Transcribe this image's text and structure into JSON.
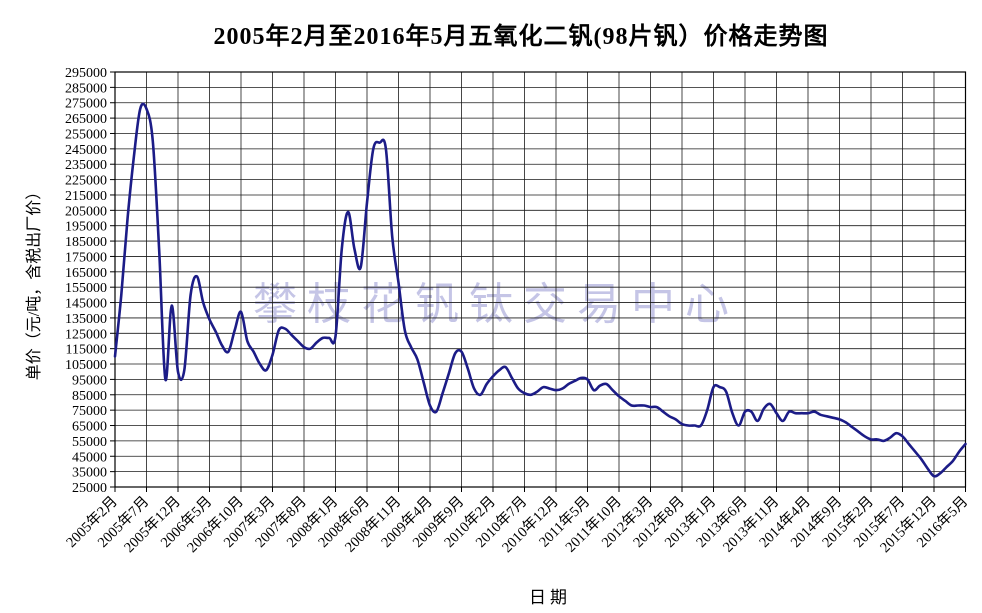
{
  "chart_data": {
    "type": "line",
    "title": "2005年2月至2016年5月五氧化二钒(98片钒）价格走势图",
    "xlabel": "日期",
    "ylabel": "单价（元/吨，含税出厂价）",
    "watermark": "攀枝花钒钛交易中心",
    "grid": "both",
    "legend": "none",
    "line_color": "#1c1c87",
    "ylim": [
      25000,
      295000
    ],
    "ytick_step": 10000,
    "ytick_labels": [
      "295000",
      "285000",
      "275000",
      "265000",
      "255000",
      "245000",
      "235000",
      "225000",
      "215000",
      "205000",
      "195000",
      "185000",
      "175000",
      "165000",
      "155000",
      "145000",
      "135000",
      "125000",
      "115000",
      "105000",
      "95000",
      "85000",
      "75000",
      "65000",
      "55000",
      "45000",
      "35000",
      "25000"
    ],
    "xtick_labels": [
      "2005年2月",
      "2005年7月",
      "2005年12月",
      "2006年5月",
      "2006年10月",
      "2007年3月",
      "2007年8月",
      "2008年1月",
      "2008年6月",
      "2008年11月",
      "2009年4月",
      "2009年9月",
      "2010年2月",
      "2010年7月",
      "2010年12月",
      "2011年5月",
      "2011年10月",
      "2012年3月",
      "2012年8月",
      "2013年1月",
      "2013年6月",
      "2013年11月",
      "2014年4月",
      "2014年9月",
      "2015年2月",
      "2015年7月",
      "2015年12月",
      "2016年5月"
    ],
    "xtick_every_n_points": 5,
    "series": [
      {
        "x": [
          "2005-02",
          "2005-03",
          "2005-04",
          "2005-05",
          "2005-06",
          "2005-07",
          "2005-08",
          "2005-09",
          "2005-10",
          "2005-11",
          "2005-12",
          "2006-01",
          "2006-02",
          "2006-03",
          "2006-04",
          "2006-05",
          "2006-06",
          "2006-07",
          "2006-08",
          "2006-09",
          "2006-10",
          "2006-11",
          "2006-12",
          "2007-01",
          "2007-02",
          "2007-03",
          "2007-04",
          "2007-05",
          "2007-06",
          "2007-07",
          "2007-08",
          "2007-09",
          "2007-10",
          "2007-11",
          "2007-12",
          "2008-01",
          "2008-02",
          "2008-03",
          "2008-04",
          "2008-05",
          "2008-06",
          "2008-07",
          "2008-08",
          "2008-09",
          "2008-10",
          "2008-11",
          "2008-12",
          "2009-01",
          "2009-02",
          "2009-03",
          "2009-04",
          "2009-05",
          "2009-06",
          "2009-07",
          "2009-08",
          "2009-09",
          "2009-10",
          "2009-11",
          "2009-12",
          "2010-01",
          "2010-02",
          "2010-03",
          "2010-04",
          "2010-05",
          "2010-06",
          "2010-07",
          "2010-08",
          "2010-09",
          "2010-10",
          "2010-11",
          "2010-12",
          "2011-01",
          "2011-02",
          "2011-03",
          "2011-04",
          "2011-05",
          "2011-06",
          "2011-07",
          "2011-08",
          "2011-09",
          "2011-10",
          "2011-11",
          "2011-12",
          "2012-01",
          "2012-02",
          "2012-03",
          "2012-04",
          "2012-05",
          "2012-06",
          "2012-07",
          "2012-08",
          "2012-09",
          "2012-10",
          "2012-11",
          "2012-12",
          "2013-01",
          "2013-02",
          "2013-03",
          "2013-04",
          "2013-05",
          "2013-06",
          "2013-07",
          "2013-08",
          "2013-09",
          "2013-10",
          "2013-11",
          "2013-12",
          "2014-01",
          "2014-02",
          "2014-03",
          "2014-04",
          "2014-05",
          "2014-06",
          "2014-07",
          "2014-08",
          "2014-09",
          "2014-10",
          "2014-11",
          "2014-12",
          "2015-01",
          "2015-02",
          "2015-03",
          "2015-04",
          "2015-05",
          "2015-06",
          "2015-07",
          "2015-08",
          "2015-09",
          "2015-10",
          "2015-11",
          "2015-12",
          "2016-01",
          "2016-02",
          "2016-03",
          "2016-04",
          "2016-05"
        ],
        "values": [
          110000,
          150000,
          200000,
          240000,
          271000,
          271000,
          250000,
          180000,
          95000,
          143000,
          100000,
          101000,
          150000,
          162000,
          145000,
          134000,
          126000,
          117000,
          113000,
          127000,
          139000,
          120000,
          113000,
          105000,
          101000,
          111000,
          127000,
          128000,
          124000,
          120000,
          116000,
          115000,
          119000,
          122000,
          122000,
          123000,
          180000,
          204000,
          180000,
          168000,
          210000,
          245000,
          249000,
          245000,
          188000,
          158000,
          127000,
          116000,
          108000,
          93000,
          78000,
          74000,
          86000,
          99000,
          112000,
          113000,
          102000,
          89000,
          85000,
          92000,
          97000,
          101000,
          103000,
          96000,
          89000,
          86000,
          85000,
          87000,
          90000,
          89000,
          88000,
          89000,
          92000,
          94000,
          96000,
          95000,
          88000,
          91000,
          92000,
          88000,
          84000,
          81000,
          78000,
          78000,
          78000,
          77000,
          77000,
          74000,
          71000,
          69000,
          66000,
          65000,
          65000,
          65000,
          75000,
          90000,
          90000,
          87000,
          73000,
          65000,
          74000,
          74000,
          68000,
          76000,
          79000,
          73000,
          68000,
          74000,
          73000,
          73000,
          73000,
          74000,
          72000,
          71000,
          70000,
          69000,
          67000,
          64000,
          61000,
          58000,
          56000,
          56000,
          55000,
          57000,
          60000,
          58000,
          53000,
          48000,
          43000,
          37000,
          32000,
          34000,
          38000,
          42000,
          48000,
          53000
        ]
      }
    ]
  }
}
